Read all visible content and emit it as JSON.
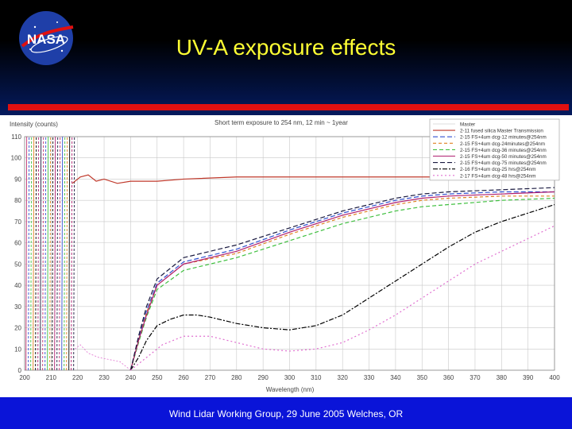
{
  "slide": {
    "title": "UV-A exposure effects",
    "footer": "Wind Lidar Working Group, 29 June 2005 Welches, OR",
    "logo_text": "NASA",
    "colors": {
      "title": "#ffff33",
      "footer_bg": "#0a14d8",
      "accent_bar": "#e01010"
    }
  },
  "chart_data": {
    "type": "line",
    "title": "Short term exposure to 254 nm, 12 min ~ 1year",
    "ylabel": "Intensity (counts)",
    "xlabel": "Wavelength (nm)",
    "xlim": [
      200,
      400
    ],
    "ylim": [
      0,
      110
    ],
    "xticks": [
      200,
      210,
      220,
      230,
      240,
      250,
      260,
      270,
      280,
      290,
      300,
      310,
      320,
      330,
      340,
      350,
      360,
      370,
      380,
      390,
      400
    ],
    "yticks": [
      0,
      10,
      20,
      30,
      40,
      50,
      60,
      70,
      80,
      90,
      100,
      110
    ],
    "grid": true,
    "legend_position": "top-right",
    "series": [
      {
        "name": "Master",
        "color": "#ffffff",
        "dash": "none",
        "x": [],
        "y": []
      },
      {
        "name": "2-11 fused silica Master Transmission",
        "color": "#c0392b",
        "dash": "none",
        "x": [
          218,
          221,
          224,
          227,
          230,
          235,
          240,
          250,
          260,
          280,
          300,
          320,
          340,
          360,
          380,
          400
        ],
        "y": [
          88,
          91,
          92,
          89,
          90,
          88,
          89,
          89,
          90,
          91,
          91,
          91,
          91,
          91,
          92,
          92
        ]
      },
      {
        "name": "2-15 FS+4um dcg-12 minutes@254nm",
        "color": "#3050d0",
        "dash": "6,3",
        "x": [
          240,
          243,
          246,
          250,
          260,
          280,
          300,
          320,
          340,
          350,
          360,
          380,
          400
        ],
        "y": [
          0,
          15,
          28,
          41,
          51,
          57,
          66,
          74,
          80,
          82,
          83,
          84,
          84
        ]
      },
      {
        "name": "2-15 FS+4um dcg-24minutes@254nm",
        "color": "#e08020",
        "dash": "4,3",
        "x": [
          240,
          243,
          246,
          250,
          260,
          280,
          300,
          320,
          340,
          350,
          360,
          380,
          400
        ],
        "y": [
          0,
          14,
          27,
          40,
          50,
          55,
          64,
          72,
          78,
          80,
          81,
          82,
          82
        ]
      },
      {
        "name": "2-15 FS+4um dcg-36 minutes@254nm",
        "color": "#40c040",
        "dash": "5,3",
        "x": [
          240,
          243,
          246,
          250,
          260,
          280,
          300,
          320,
          340,
          350,
          360,
          380,
          400
        ],
        "y": [
          0,
          13,
          25,
          38,
          47,
          53,
          61,
          69,
          75,
          77,
          78,
          80,
          81
        ]
      },
      {
        "name": "2-15 FS+4um dcg-50 minutes@254nm",
        "color": "#b02070",
        "dash": "none",
        "x": [
          240,
          243,
          246,
          250,
          260,
          280,
          300,
          320,
          340,
          350,
          360,
          380,
          400
        ],
        "y": [
          0,
          14,
          26,
          40,
          50,
          56,
          65,
          73,
          79,
          81,
          82,
          83,
          84
        ]
      },
      {
        "name": "2-15 FS+4um dcg-75 minutes@254nm",
        "color": "#1a1a40",
        "dash": "6,3",
        "x": [
          240,
          243,
          246,
          250,
          260,
          280,
          300,
          320,
          340,
          350,
          360,
          380,
          400
        ],
        "y": [
          0,
          16,
          30,
          43,
          53,
          59,
          67,
          75,
          81,
          83,
          84,
          85,
          86
        ]
      },
      {
        "name": "2-16 FS+4um dcg-25 hrs@254nm",
        "color": "#000000",
        "dash": "6,2,2,2",
        "x": [
          240,
          243,
          246,
          250,
          255,
          260,
          265,
          270,
          280,
          290,
          300,
          310,
          320,
          330,
          340,
          350,
          360,
          370,
          380,
          390,
          400
        ],
        "y": [
          0,
          6,
          14,
          21,
          24,
          26,
          26,
          25,
          22,
          20,
          19,
          21,
          26,
          34,
          42,
          50,
          58,
          65,
          70,
          74,
          78
        ]
      },
      {
        "name": "2-17 FS+4um dcg-48 hrs@254nm",
        "color": "#e070d0",
        "dash": "2,3",
        "x": [
          240,
          244,
          248,
          252,
          260,
          270,
          280,
          290,
          300,
          310,
          320,
          330,
          340,
          350,
          360,
          370,
          380,
          390,
          400
        ],
        "y": [
          0,
          4,
          8,
          12,
          16,
          16,
          13,
          10,
          9,
          10,
          13,
          19,
          26,
          34,
          42,
          50,
          56,
          62,
          68
        ]
      }
    ]
  }
}
